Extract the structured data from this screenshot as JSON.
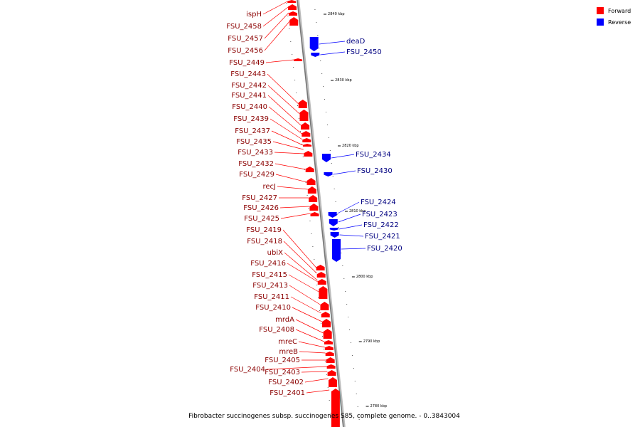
{
  "caption": "Fibrobacter succinogenes subsp. succinogenes S85, complete genome. - 0..3843004",
  "legend": [
    {
      "label": "Forward",
      "color": "#ff0000"
    },
    {
      "label": "Reverse",
      "color": "#0000ff"
    }
  ],
  "colors": {
    "forward": "#ff0000",
    "reverse": "#0000ff",
    "axis": "#777777"
  },
  "ticks": [
    "2840 kbp",
    "2830 kbp",
    "2820 kbp",
    "2810 kbp",
    "2800 kbp",
    "2790 kbp",
    "2780 kbp"
  ],
  "forward_genes": [
    "ispH",
    "FSU_2458",
    "FSU_2457",
    "FSU_2456",
    "FSU_2449",
    "FSU_2443",
    "FSU_2442",
    "FSU_2441",
    "FSU_2440",
    "FSU_2439",
    "FSU_2437",
    "FSU_2435",
    "FSU_2433",
    "FSU_2432",
    "FSU_2429",
    "recJ",
    "FSU_2427",
    "FSU_2426",
    "FSU_2425",
    "FSU_2419",
    "FSU_2418",
    "ubiX",
    "FSU_2416",
    "FSU_2415",
    "FSU_2413",
    "FSU_2411",
    "FSU_2410",
    "mrdA",
    "FSU_2408",
    "mreC",
    "mreB",
    "FSU_2405",
    "FSU_2404",
    "FSU_2403",
    "FSU_2402",
    "FSU_2401"
  ],
  "reverse_genes": [
    "deaD",
    "FSU_2450",
    "FSU_2434",
    "FSU_2430",
    "FSU_2424",
    "FSU_2423",
    "FSU_2422",
    "FSU_2421",
    "FSU_2420"
  ]
}
